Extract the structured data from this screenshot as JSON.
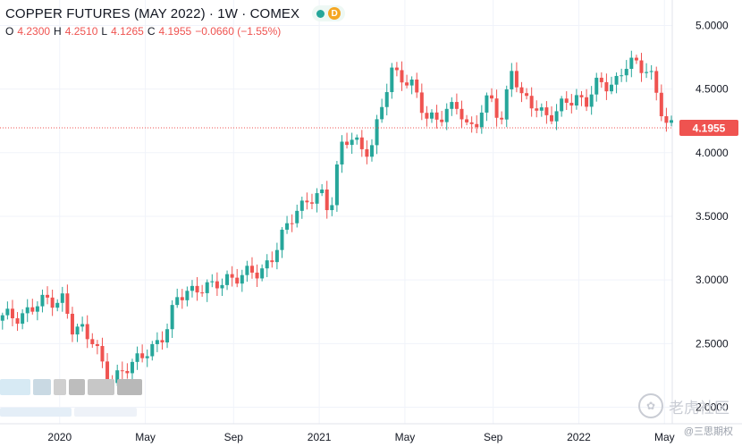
{
  "header": {
    "title": "COPPER FUTURES (MAY 2022) · 1W · COMEX",
    "badge_dot": "green-dot-icon",
    "badge_letter": "D",
    "ohlc": {
      "o_label": "O",
      "o": "4.2300",
      "h_label": "H",
      "h": "4.2510",
      "l_label": "L",
      "l": "4.1265",
      "c_label": "C",
      "c": "4.1955",
      "change": "−0.0660 (−1.55%)"
    }
  },
  "watermark": {
    "text": "老虎社区",
    "icon": "paw-icon"
  },
  "footer_note": "@三思期权",
  "last_price_label": "4.1955",
  "colors": {
    "up": "#26a69a",
    "down": "#ef5350",
    "grid": "#f0f3fa",
    "last_line": "#ef5350"
  },
  "chart_data": {
    "type": "candlestick",
    "title": "COPPER FUTURES (MAY 2022) · 1W · COMEX",
    "y_ticks": [
      "2.0000",
      "2.5000",
      "3.0000",
      "3.5000",
      "4.0000",
      "4.5000",
      "5.0000"
    ],
    "y_tick_values": [
      2.0,
      2.5,
      3.0,
      3.5,
      4.0,
      4.5,
      5.0
    ],
    "ylim": [
      1.87,
      5.2
    ],
    "x_ticks": [
      {
        "label": "2020",
        "at": 2020.0
      },
      {
        "label": "May",
        "at": 2020.33
      },
      {
        "label": "Sep",
        "at": 2020.67
      },
      {
        "label": "2021",
        "at": 2021.0
      },
      {
        "label": "May",
        "at": 2021.33
      },
      {
        "label": "Sep",
        "at": 2021.67
      },
      {
        "label": "2022",
        "at": 2022.0
      },
      {
        "label": "May",
        "at": 2022.33
      }
    ],
    "xlim": [
      2019.77,
      2022.36
    ],
    "last_price": 4.1955,
    "grid": true,
    "series_points": [
      [
        2019.77,
        2.68
      ],
      [
        2019.83,
        2.72
      ],
      [
        2019.9,
        2.76
      ],
      [
        2019.97,
        2.86
      ],
      [
        2020.02,
        2.85
      ],
      [
        2020.06,
        2.58
      ],
      [
        2020.1,
        2.62
      ],
      [
        2020.14,
        2.55
      ],
      [
        2020.18,
        2.27
      ],
      [
        2020.21,
        2.18
      ],
      [
        2020.26,
        2.34
      ],
      [
        2020.32,
        2.36
      ],
      [
        2020.37,
        2.48
      ],
      [
        2020.42,
        2.62
      ],
      [
        2020.46,
        2.82
      ],
      [
        2020.5,
        2.92
      ],
      [
        2020.55,
        2.95
      ],
      [
        2020.6,
        2.92
      ],
      [
        2020.65,
        3.03
      ],
      [
        2020.72,
        3.02
      ],
      [
        2020.78,
        3.08
      ],
      [
        2020.83,
        3.18
      ],
      [
        2020.88,
        3.38
      ],
      [
        2020.92,
        3.58
      ],
      [
        2020.97,
        3.62
      ],
      [
        2021.02,
        3.65
      ],
      [
        2021.05,
        3.55
      ],
      [
        2021.09,
        4.05
      ],
      [
        2021.13,
        4.1
      ],
      [
        2021.17,
        4.03
      ],
      [
        2021.21,
        4.06
      ],
      [
        2021.25,
        4.35
      ],
      [
        2021.29,
        4.63
      ],
      [
        2021.33,
        4.62
      ],
      [
        2021.37,
        4.52
      ],
      [
        2021.42,
        4.25
      ],
      [
        2021.46,
        4.3
      ],
      [
        2021.5,
        4.32
      ],
      [
        2021.54,
        4.35
      ],
      [
        2021.58,
        4.2
      ],
      [
        2021.62,
        4.28
      ],
      [
        2021.67,
        4.42
      ],
      [
        2021.71,
        4.23
      ],
      [
        2021.75,
        4.7
      ],
      [
        2021.79,
        4.4
      ],
      [
        2021.83,
        4.38
      ],
      [
        2021.88,
        4.32
      ],
      [
        2021.92,
        4.28
      ],
      [
        2021.96,
        4.4
      ],
      [
        2022.0,
        4.45
      ],
      [
        2022.04,
        4.4
      ],
      [
        2022.08,
        4.52
      ],
      [
        2022.12,
        4.55
      ],
      [
        2022.16,
        4.58
      ],
      [
        2022.2,
        4.7
      ],
      [
        2022.24,
        4.67
      ],
      [
        2022.28,
        4.7
      ],
      [
        2022.32,
        4.35
      ],
      [
        2022.35,
        4.1955
      ]
    ]
  }
}
